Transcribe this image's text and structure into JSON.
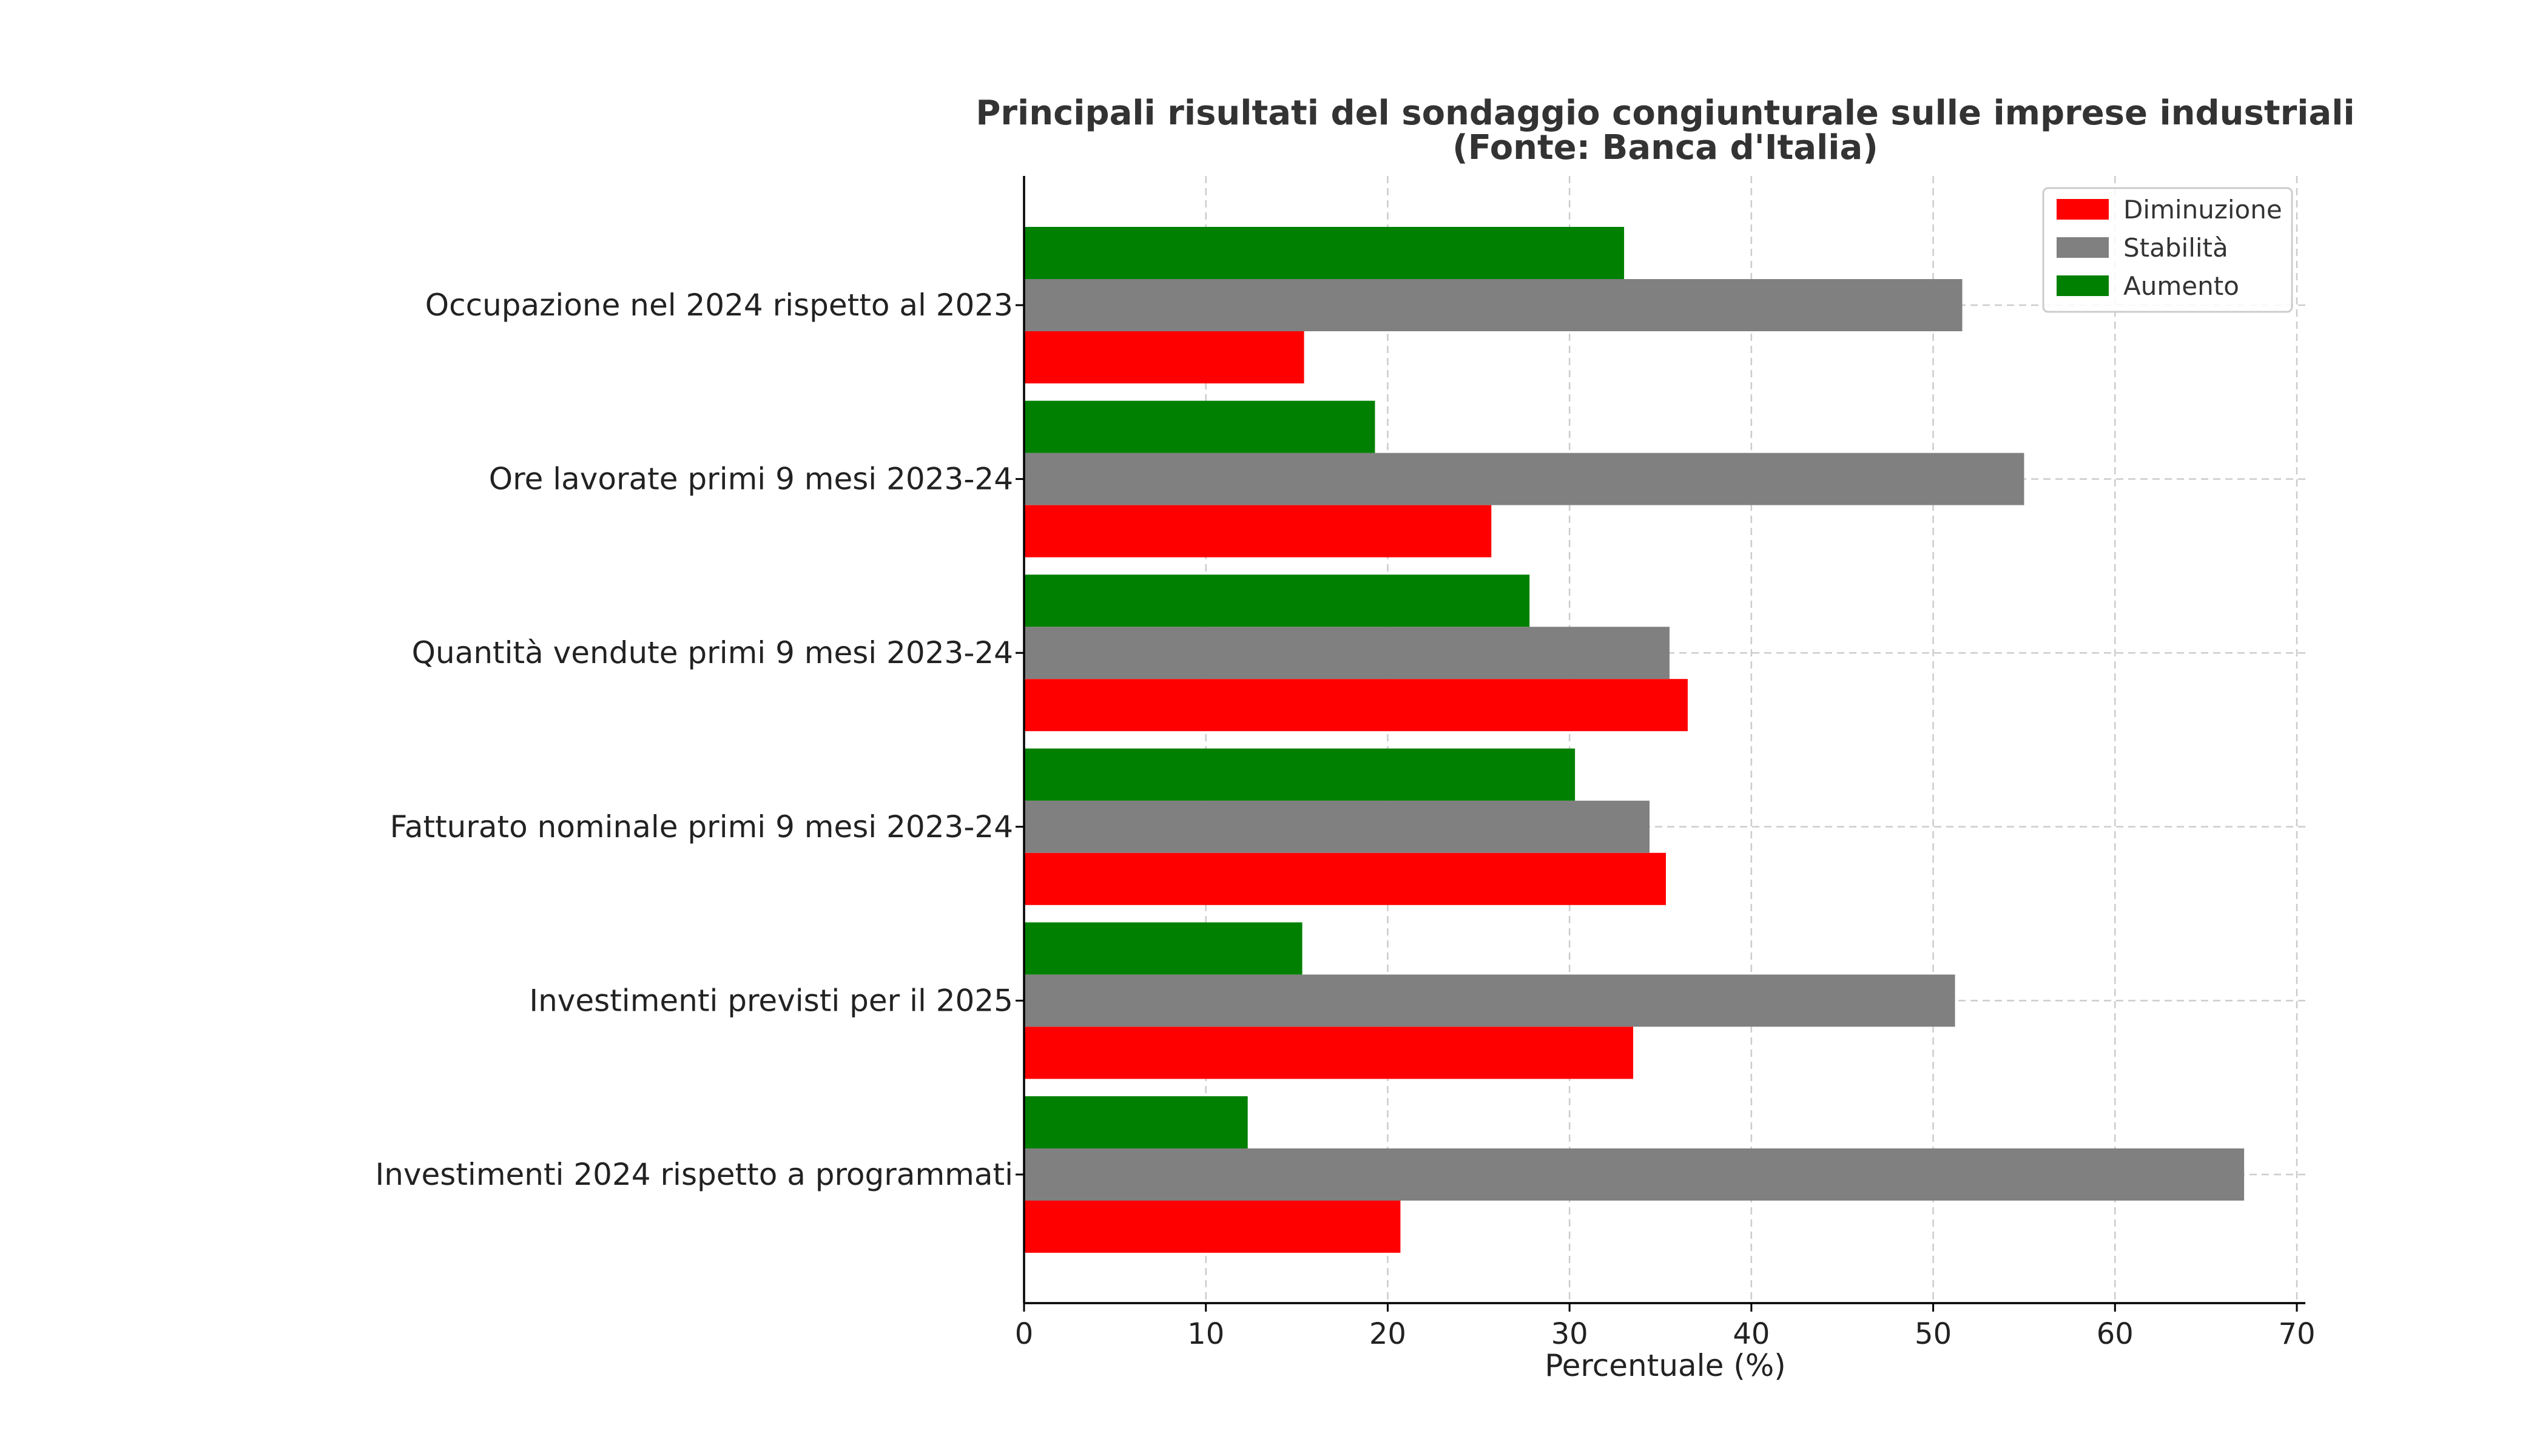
{
  "chart_data": {
    "type": "bar",
    "orientation": "horizontal",
    "title": "Principali risultati del sondaggio congiunturale sulle imprese industriali",
    "subtitle": "(Fonte: Banca d'Italia)",
    "xlabel": "Percentuale (%)",
    "ylabel": "",
    "xlim": [
      0,
      70
    ],
    "xticks": [
      0,
      10,
      20,
      30,
      40,
      50,
      60,
      70
    ],
    "grid": true,
    "legend_position": "top-right",
    "categories": [
      "Occupazione nel 2024 rispetto al 2023",
      "Ore lavorate primi 9 mesi 2023-24",
      "Quantità vendute primi 9 mesi 2023-24",
      "Fatturato nominale primi 9 mesi 2023-24",
      "Investimenti previsti per il 2025",
      "Investimenti 2024 rispetto a programmati"
    ],
    "series": [
      {
        "name": "Diminuzione",
        "color": "#ff0000",
        "values": [
          15.4,
          25.7,
          36.5,
          35.3,
          33.5,
          20.7
        ]
      },
      {
        "name": "Stabilità",
        "color": "#808080",
        "values": [
          51.6,
          55.0,
          35.5,
          34.4,
          51.2,
          67.1
        ]
      },
      {
        "name": "Aumento",
        "color": "#008000",
        "values": [
          33.0,
          19.3,
          27.8,
          30.3,
          15.3,
          12.3
        ]
      }
    ]
  }
}
